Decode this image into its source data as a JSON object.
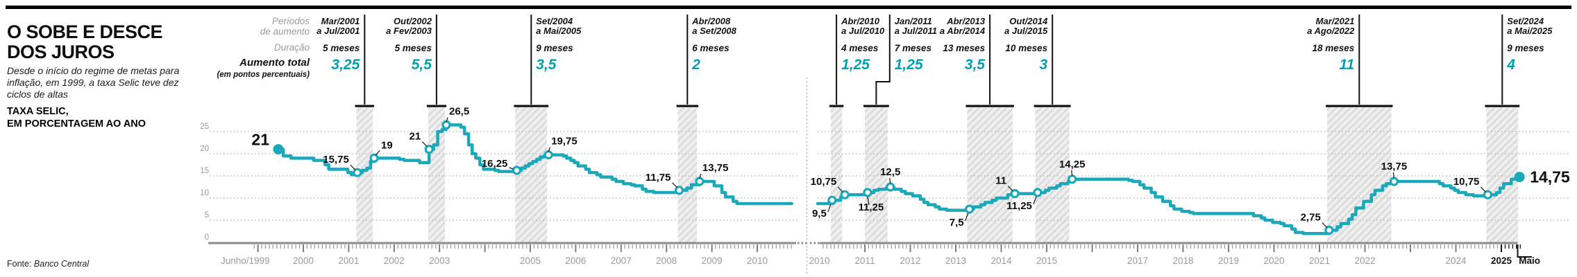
{
  "accent_text": "#00a0b4",
  "line_color": "#1ba9ba",
  "header": {
    "title_line1": "O SOBE E DESCE",
    "title_line2": "DOS JUROS",
    "subtitle": "Desde o início do regime de metas para inflação, em 1999, a taxa Selic teve dez ciclos de altas",
    "tagline_line1": "TAXA SELIC,",
    "tagline_line2": "EM PORCENTAGEM AO ANO",
    "source_label": "Fonte:",
    "source_name": "Banco Central"
  },
  "legend": {
    "periodos_line1": "Períodos",
    "periodos_line2": "de aumento",
    "duracao": "Duração",
    "aumento": "Aumento total",
    "aumento_sub": "(em pontos percentuais)"
  },
  "cycles": [
    {
      "chart": 0,
      "period1": "Mar/2001",
      "period2": "a Jul/2001",
      "duration": "5 meses",
      "total": "3,25",
      "t0": 2001.17,
      "t1": 2001.53,
      "side": "left",
      "elbow": false
    },
    {
      "chart": 0,
      "period1": "Out/2002",
      "period2": "a Fev/2003",
      "duration": "5 meses",
      "total": "5,5",
      "t0": 2002.75,
      "t1": 2003.12,
      "side": "left",
      "elbow": false
    },
    {
      "chart": 0,
      "period1": "Set/2004",
      "period2": "a Mai/2005",
      "duration": "9 meses",
      "total": "3,5",
      "t0": 2004.67,
      "t1": 2005.37,
      "side": "right",
      "elbow": false
    },
    {
      "chart": 0,
      "period1": "Abr/2008",
      "period2": "a Set/2008",
      "duration": "6 meses",
      "total": "2",
      "t0": 2008.25,
      "t1": 2008.67,
      "side": "right",
      "elbow": false
    },
    {
      "chart": 1,
      "period1": "Abr/2010",
      "period2": "a Jul/2010",
      "duration": "4 meses",
      "total": "1,25",
      "t0": 2010.25,
      "t1": 2010.5,
      "side": "right",
      "elbow": false
    },
    {
      "chart": 1,
      "period1": "Jan/2011",
      "period2": "a Jul/2011",
      "duration": "7 meses",
      "total": "1,25",
      "t0": 2011.0,
      "t1": 2011.5,
      "side": "right",
      "elbow": true
    },
    {
      "chart": 1,
      "period1": "Abr/2013",
      "period2": "a Abr/2014",
      "duration": "13 meses",
      "total": "3,5",
      "t0": 2013.25,
      "t1": 2014.25,
      "side": "left",
      "elbow": false
    },
    {
      "chart": 1,
      "period1": "Out/2014",
      "period2": "a Jul/2015",
      "duration": "10 meses",
      "total": "3",
      "t0": 2014.75,
      "t1": 2015.5,
      "side": "left",
      "elbow": false
    },
    {
      "chart": 1,
      "period1": "Mar/2021",
      "period2": "a Ago/2022",
      "duration": "18 meses",
      "total": "11",
      "t0": 2021.17,
      "t1": 2022.58,
      "side": "left",
      "elbow": false
    },
    {
      "chart": 1,
      "period1": "Set/2024",
      "period2": "a Mai/2025",
      "duration": "9 meses",
      "total": "4",
      "t0": 2024.67,
      "t1": 2025.37,
      "side": "right",
      "elbow": false
    }
  ],
  "chart_data": [
    {
      "type": "line",
      "title": "Taxa Selic 1999-2010, % ao ano",
      "ylim": [
        0,
        27
      ],
      "gridlines": [
        5,
        10,
        15,
        20,
        25
      ],
      "ytick_labels": [
        "0",
        "5",
        "10",
        "15",
        "20",
        "25"
      ],
      "x_labels": [
        {
          "t": 1998.72,
          "text": "Junho/1999",
          "emph": false
        },
        {
          "t": 2000,
          "text": "2000",
          "emph": false
        },
        {
          "t": 2001,
          "text": "2001",
          "emph": false
        },
        {
          "t": 2002,
          "text": "2002",
          "emph": false
        },
        {
          "t": 2003,
          "text": "2003",
          "emph": false
        },
        {
          "t": 2005,
          "text": "2005",
          "emph": false
        },
        {
          "t": 2006,
          "text": "2006",
          "emph": false
        },
        {
          "t": 2007,
          "text": "2007",
          "emph": false
        },
        {
          "t": 2008,
          "text": "2008",
          "emph": false
        },
        {
          "t": 2009,
          "text": "2009",
          "emph": false
        },
        {
          "t": 2010,
          "text": "2010",
          "emph": false
        }
      ],
      "series": [
        [
          1999.45,
          21
        ],
        [
          1999.56,
          19.5
        ],
        [
          1999.73,
          19
        ],
        [
          2000.23,
          18.5
        ],
        [
          2000.48,
          17.5
        ],
        [
          2000.56,
          16.5
        ],
        [
          2000.98,
          15.75
        ],
        [
          2001.06,
          15.25
        ],
        [
          2001.19,
          15.75
        ],
        [
          2001.3,
          16.25
        ],
        [
          2001.4,
          16.75
        ],
        [
          2001.48,
          18.25
        ],
        [
          2001.56,
          19
        ],
        [
          2002.12,
          18.75
        ],
        [
          2002.22,
          18.5
        ],
        [
          2002.56,
          18
        ],
        [
          2002.77,
          21
        ],
        [
          2002.87,
          22
        ],
        [
          2002.96,
          25
        ],
        [
          2003.06,
          25.5
        ],
        [
          2003.15,
          26.5
        ],
        [
          2003.47,
          26
        ],
        [
          2003.55,
          24.5
        ],
        [
          2003.64,
          22
        ],
        [
          2003.72,
          20
        ],
        [
          2003.8,
          19
        ],
        [
          2003.89,
          17.5
        ],
        [
          2003.97,
          16.5
        ],
        [
          2004.22,
          16.25
        ],
        [
          2004.3,
          16
        ],
        [
          2004.7,
          16.25
        ],
        [
          2004.8,
          16.75
        ],
        [
          2004.89,
          17.25
        ],
        [
          2004.97,
          17.75
        ],
        [
          2005.05,
          18.25
        ],
        [
          2005.14,
          18.75
        ],
        [
          2005.22,
          19.25
        ],
        [
          2005.3,
          19.5
        ],
        [
          2005.4,
          19.75
        ],
        [
          2005.72,
          19.5
        ],
        [
          2005.8,
          19
        ],
        [
          2005.89,
          18.5
        ],
        [
          2005.97,
          18
        ],
        [
          2006.05,
          17.25
        ],
        [
          2006.22,
          16.5
        ],
        [
          2006.3,
          15.75
        ],
        [
          2006.47,
          15.25
        ],
        [
          2006.55,
          14.75
        ],
        [
          2006.8,
          14.25
        ],
        [
          2006.89,
          13.75
        ],
        [
          2007.05,
          13.25
        ],
        [
          2007.22,
          13
        ],
        [
          2007.3,
          12.75
        ],
        [
          2007.47,
          12
        ],
        [
          2007.55,
          11.5
        ],
        [
          2007.72,
          11.25
        ],
        [
          2008.28,
          11.75
        ],
        [
          2008.45,
          12.25
        ],
        [
          2008.55,
          13
        ],
        [
          2008.73,
          13.75
        ],
        [
          2009.05,
          12.75
        ],
        [
          2009.22,
          11.25
        ],
        [
          2009.3,
          10.25
        ],
        [
          2009.47,
          9.25
        ],
        [
          2009.55,
          8.75
        ],
        [
          2010.76,
          8.75
        ]
      ],
      "start_dot": {
        "t": 1999.45,
        "v": 21,
        "label": "21",
        "pos": "start-big"
      },
      "markers": [
        {
          "t": 2001.19,
          "v": 15.75,
          "label": "15,75",
          "pos": "above-left"
        },
        {
          "t": 2001.56,
          "v": 19,
          "label": "19",
          "pos": "above-right"
        },
        {
          "t": 2002.77,
          "v": 21,
          "label": "21",
          "pos": "above-left"
        },
        {
          "t": 2003.15,
          "v": 26.5,
          "label": "26,5",
          "pos": "above-right-tight"
        },
        {
          "t": 2004.7,
          "v": 16.25,
          "label": "16,25",
          "pos": "left"
        },
        {
          "t": 2005.4,
          "v": 19.75,
          "label": "19,75",
          "pos": "above-right-tight"
        },
        {
          "t": 2008.28,
          "v": 11.75,
          "label": "11,75",
          "pos": "above-left"
        },
        {
          "t": 2008.73,
          "v": 13.75,
          "label": "13,75",
          "pos": "above-right-tight"
        }
      ]
    },
    {
      "type": "line",
      "title": "Taxa Selic 2010-2025, % ao ano",
      "ylim": [
        0,
        27
      ],
      "gridlines": [
        5,
        10,
        15,
        20,
        25
      ],
      "ytick_labels": [],
      "x_labels": [
        {
          "t": 2010,
          "text": "2010",
          "emph": false
        },
        {
          "t": 2011,
          "text": "2011",
          "emph": false
        },
        {
          "t": 2012,
          "text": "2012",
          "emph": false
        },
        {
          "t": 2013,
          "text": "2013",
          "emph": false
        },
        {
          "t": 2014,
          "text": "2014",
          "emph": false
        },
        {
          "t": 2015,
          "text": "2015",
          "emph": false
        },
        {
          "t": 2017,
          "text": "2017",
          "emph": false
        },
        {
          "t": 2018,
          "text": "2018",
          "emph": false
        },
        {
          "t": 2019,
          "text": "2019",
          "emph": false
        },
        {
          "t": 2020,
          "text": "2020",
          "emph": false
        },
        {
          "t": 2021,
          "text": "2021",
          "emph": false
        },
        {
          "t": 2022,
          "text": "2022",
          "emph": false
        },
        {
          "t": 2024,
          "text": "2024",
          "emph": false
        },
        {
          "t": 2025,
          "text": "2025",
          "emph": true
        },
        {
          "t": 2025.62,
          "text": "Maio",
          "emph": true
        }
      ],
      "series": [
        [
          2009.96,
          8.75
        ],
        [
          2010.28,
          9.5
        ],
        [
          2010.47,
          10.25
        ],
        [
          2010.56,
          10.75
        ],
        [
          2011.06,
          11.25
        ],
        [
          2011.2,
          11.75
        ],
        [
          2011.3,
          12
        ],
        [
          2011.47,
          12.25
        ],
        [
          2011.56,
          12.5
        ],
        [
          2011.64,
          12
        ],
        [
          2011.8,
          11.5
        ],
        [
          2011.89,
          11
        ],
        [
          2012.05,
          10.5
        ],
        [
          2012.22,
          9.75
        ],
        [
          2012.3,
          9
        ],
        [
          2012.39,
          8.5
        ],
        [
          2012.55,
          8
        ],
        [
          2012.64,
          7.5
        ],
        [
          2012.8,
          7.25
        ],
        [
          2013.3,
          7.5
        ],
        [
          2013.39,
          8
        ],
        [
          2013.55,
          8.5
        ],
        [
          2013.64,
          9
        ],
        [
          2013.8,
          9.5
        ],
        [
          2013.89,
          10
        ],
        [
          2014.14,
          10.75
        ],
        [
          2014.3,
          11
        ],
        [
          2014.8,
          11.25
        ],
        [
          2014.97,
          11.75
        ],
        [
          2015.05,
          12.25
        ],
        [
          2015.22,
          12.75
        ],
        [
          2015.3,
          13.25
        ],
        [
          2015.47,
          13.75
        ],
        [
          2015.56,
          14.25
        ],
        [
          2016.8,
          14
        ],
        [
          2016.89,
          13.75
        ],
        [
          2017.05,
          13
        ],
        [
          2017.14,
          12.25
        ],
        [
          2017.3,
          11.25
        ],
        [
          2017.39,
          10.25
        ],
        [
          2017.55,
          9.25
        ],
        [
          2017.72,
          8.25
        ],
        [
          2017.8,
          7.5
        ],
        [
          2017.97,
          7
        ],
        [
          2018.14,
          6.75
        ],
        [
          2018.22,
          6.5
        ],
        [
          2019.55,
          6
        ],
        [
          2019.72,
          5.5
        ],
        [
          2019.8,
          5
        ],
        [
          2019.97,
          4.5
        ],
        [
          2020.14,
          4.25
        ],
        [
          2020.22,
          3.75
        ],
        [
          2020.39,
          3
        ],
        [
          2020.47,
          2.25
        ],
        [
          2020.64,
          2
        ],
        [
          2021.21,
          2.75
        ],
        [
          2021.39,
          3.5
        ],
        [
          2021.47,
          4.25
        ],
        [
          2021.64,
          5.25
        ],
        [
          2021.72,
          6.25
        ],
        [
          2021.8,
          7.75
        ],
        [
          2021.97,
          9.25
        ],
        [
          2022.14,
          10.75
        ],
        [
          2022.22,
          11.75
        ],
        [
          2022.39,
          12.75
        ],
        [
          2022.47,
          13.25
        ],
        [
          2022.64,
          13.75
        ],
        [
          2023.64,
          13.25
        ],
        [
          2023.72,
          12.75
        ],
        [
          2023.89,
          12.25
        ],
        [
          2023.97,
          11.75
        ],
        [
          2024.05,
          11.25
        ],
        [
          2024.22,
          10.75
        ],
        [
          2024.39,
          10.5
        ],
        [
          2024.7,
          10.75
        ],
        [
          2024.89,
          11.25
        ],
        [
          2024.97,
          12.25
        ],
        [
          2025.05,
          13.25
        ],
        [
          2025.22,
          14.25
        ],
        [
          2025.4,
          14.75
        ]
      ],
      "end_dot": {
        "t": 2025.4,
        "v": 14.75,
        "label": "14,75",
        "pos": "end-big"
      },
      "markers": [
        {
          "t": 2010.28,
          "v": 9.5,
          "label": "9,5",
          "pos": "below-left"
        },
        {
          "t": 2010.56,
          "v": 10.75,
          "label": "10,75",
          "pos": "above-left"
        },
        {
          "t": 2011.06,
          "v": 11.25,
          "label": "11,25",
          "pos": "below"
        },
        {
          "t": 2011.56,
          "v": 12.5,
          "label": "12,5",
          "pos": "above"
        },
        {
          "t": 2013.3,
          "v": 7.5,
          "label": "7,5",
          "pos": "below-left"
        },
        {
          "t": 2014.3,
          "v": 11,
          "label": "11",
          "pos": "above-left"
        },
        {
          "t": 2014.8,
          "v": 11.25,
          "label": "11,25",
          "pos": "below-left"
        },
        {
          "t": 2015.56,
          "v": 14.25,
          "label": "14,25",
          "pos": "above"
        },
        {
          "t": 2021.21,
          "v": 2.75,
          "label": "2,75",
          "pos": "above-left"
        },
        {
          "t": 2022.64,
          "v": 13.75,
          "label": "13,75",
          "pos": "above"
        },
        {
          "t": 2024.7,
          "v": 10.75,
          "label": "10,75",
          "pos": "above-left"
        }
      ]
    }
  ]
}
